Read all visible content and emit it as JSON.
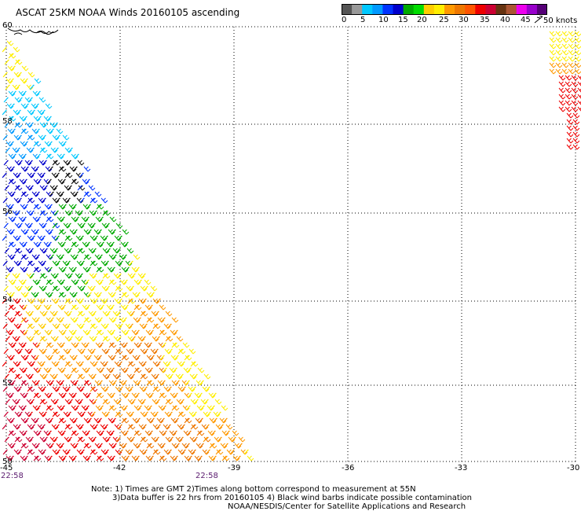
{
  "title": "ASCAT 25KM NOAA Winds 20160105 ascending",
  "colorbar": {
    "colors": [
      "#555555",
      "#999999",
      "#00c8ff",
      "#0099ff",
      "#0033ff",
      "#0000cc",
      "#00aa00",
      "#00dd00",
      "#ffcc00",
      "#ffee00",
      "#ff9900",
      "#ee7700",
      "#ff5500",
      "#ee0000",
      "#cc0033",
      "#663311",
      "#aa5533",
      "#ee00ee",
      "#9900cc",
      "#550077"
    ],
    "labels": [
      "0",
      "5",
      "10",
      "15",
      "20",
      "25",
      "30",
      "35",
      "40",
      "45"
    ],
    "unit_label": "50 knots"
  },
  "axes": {
    "y_labels": [
      "60",
      "58",
      "56",
      "54",
      "52",
      "50"
    ],
    "x_labels": [
      "-45",
      "-42",
      "-39",
      "-36",
      "-33",
      "-30"
    ]
  },
  "times": [
    "22:58",
    "22:58"
  ],
  "notes": [
    "Note: 1) Times are GMT 2)Times along bottom correspond to measurement at 55N",
    "3)Data buffer is 22 hrs from 20160105 4) Black wind barbs indicate possible contamination",
    "NOAA/NESDIS/Center for Satellite Applications and Research"
  ],
  "wind_palette": {
    "black": "#111111",
    "cyan": "#00c8ff",
    "sky": "#0099ff",
    "blue": "#0033ff",
    "navy": "#0000cc",
    "green": "#00aa00",
    "yellow": "#ffee00",
    "gold": "#ffcc00",
    "orange": "#ff9900",
    "dkorange": "#ee7700",
    "red": "#ee0000",
    "crimson": "#cc0033"
  }
}
